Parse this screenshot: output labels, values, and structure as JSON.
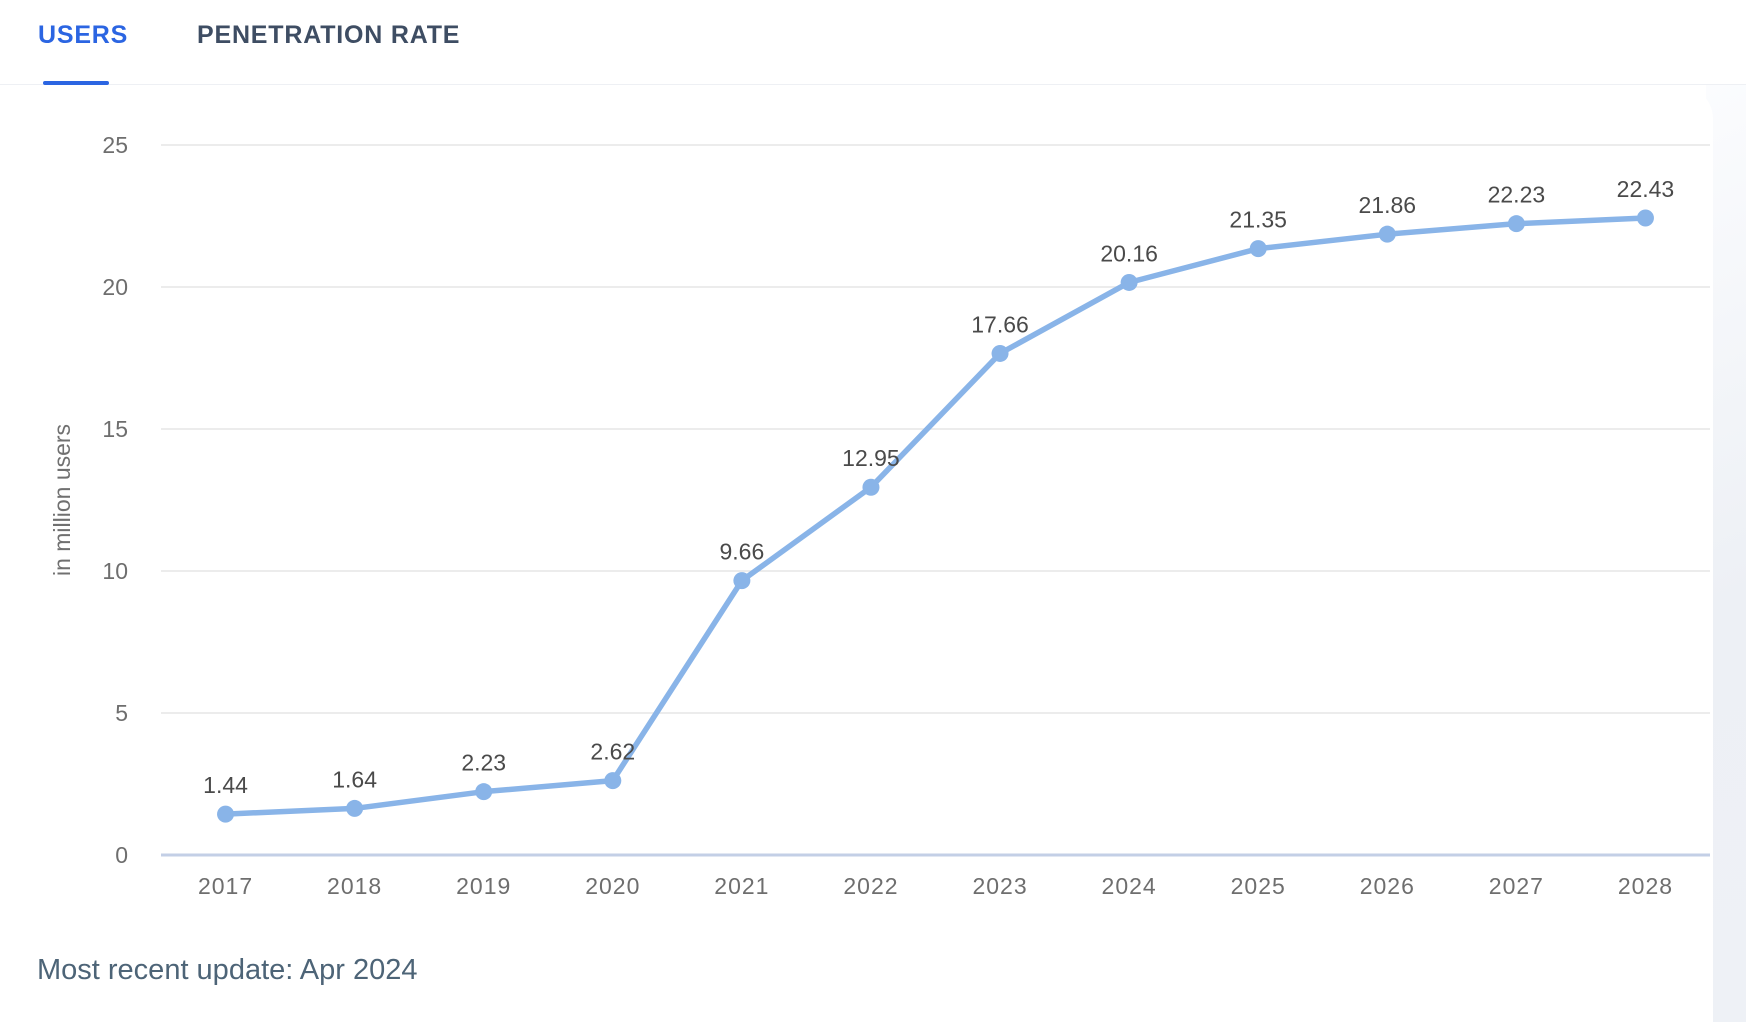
{
  "tabs": [
    {
      "label": "USERS",
      "active": true
    },
    {
      "label": "PENETRATION RATE",
      "active": false
    }
  ],
  "footer": {
    "update_note": "Most recent update: Apr 2024"
  },
  "colors": {
    "accent_blue": "#2B65E2",
    "line_blue": "#89B4E8",
    "inactive_tab_text": "#3E4D63",
    "axis_text": "#6E6E6E",
    "value_label_text": "#4A4A4A",
    "grid_line": "#E6E6E6",
    "zero_line": "#C3CFE6",
    "ylabel_text": "#707070",
    "footer_text": "#4D6477",
    "right_strip_bg": "#EEF1F5"
  },
  "chart_data": {
    "type": "line",
    "title": "",
    "x": [
      "2017",
      "2018",
      "2019",
      "2020",
      "2021",
      "2022",
      "2023",
      "2024",
      "2025",
      "2026",
      "2027",
      "2028"
    ],
    "series": [
      {
        "name": "Users",
        "values": [
          1.44,
          1.64,
          2.23,
          2.62,
          9.66,
          12.95,
          17.66,
          20.16,
          21.35,
          21.86,
          22.23,
          22.43
        ]
      }
    ],
    "point_labels": [
      "1.44",
      "1.64",
      "2.23",
      "2.62",
      "9.66",
      "12.95",
      "17.66",
      "20.16",
      "21.35",
      "21.86",
      "22.23",
      "22.43"
    ],
    "xlabel": "",
    "ylabel": "in million users",
    "ylim": [
      0,
      25
    ],
    "yticks": [
      0,
      5,
      10,
      15,
      20,
      25
    ],
    "grid": true,
    "legend": false,
    "point_labels_visible": true
  }
}
